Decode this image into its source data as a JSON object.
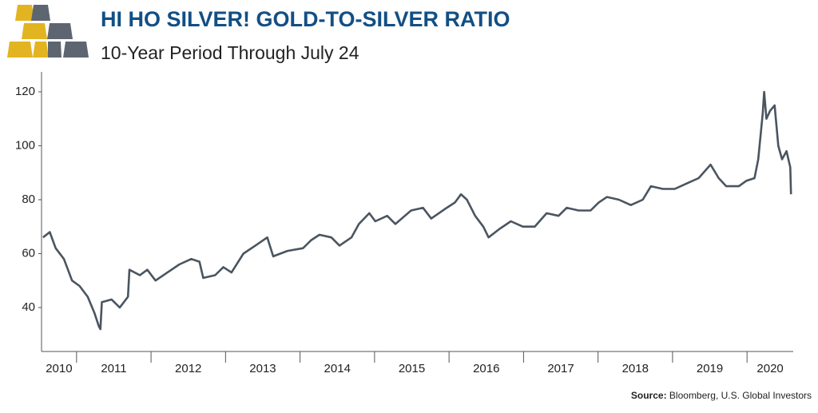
{
  "chart_data": {
    "type": "line",
    "title": "HI HO SILVER! GOLD-TO-SILVER RATIO",
    "subtitle": "10-Year Period Through July 24",
    "source_label": "Source:",
    "source": "Bloomberg, U.S. Global Investors",
    "x": [
      2010.55,
      2010.64,
      2010.72,
      2010.83,
      2010.94,
      2011.04,
      2011.15,
      2011.24,
      2011.3,
      2011.32,
      2011.34,
      2011.47,
      2011.58,
      2011.69,
      2011.71,
      2011.85,
      2011.95,
      2012.06,
      2012.22,
      2012.38,
      2012.54,
      2012.65,
      2012.7,
      2012.86,
      2012.97,
      2013.08,
      2013.24,
      2013.4,
      2013.56,
      2013.64,
      2013.83,
      2014.04,
      2014.15,
      2014.26,
      2014.42,
      2014.53,
      2014.69,
      2014.79,
      2014.93,
      2015.01,
      2015.17,
      2015.28,
      2015.49,
      2015.65,
      2015.76,
      2015.97,
      2016.08,
      2016.16,
      2016.24,
      2016.35,
      2016.46,
      2016.53,
      2016.67,
      2016.83,
      2016.99,
      2017.15,
      2017.31,
      2017.47,
      2017.58,
      2017.74,
      2017.9,
      2018.01,
      2018.12,
      2018.28,
      2018.44,
      2018.6,
      2018.71,
      2018.87,
      2019.03,
      2019.19,
      2019.35,
      2019.51,
      2019.62,
      2019.72,
      2019.89,
      2019.99,
      2020.1,
      2020.15,
      2020.21,
      2020.23,
      2020.26,
      2020.31,
      2020.37,
      2020.42,
      2020.47,
      2020.53,
      2020.58,
      2020.59
    ],
    "series": [
      {
        "name": "Gold-to-Silver Ratio",
        "color": "#4a5560",
        "values": [
          66,
          68,
          62,
          58,
          50,
          48,
          44,
          38,
          33,
          32,
          42,
          43,
          40,
          44,
          54,
          52,
          54,
          50,
          53,
          56,
          58,
          57,
          51,
          52,
          55,
          53,
          60,
          63,
          66,
          59,
          61,
          62,
          65,
          67,
          66,
          63,
          66,
          71,
          75,
          72,
          74,
          71,
          76,
          77,
          73,
          77,
          79,
          82,
          80,
          74,
          70,
          66,
          69,
          72,
          70,
          70,
          75,
          74,
          77,
          76,
          76,
          79,
          81,
          80,
          78,
          80,
          85,
          84,
          84,
          86,
          88,
          93,
          88,
          85,
          85,
          87,
          88,
          95,
          112,
          120,
          110,
          113,
          115,
          100,
          95,
          98,
          92,
          82
        ]
      }
    ],
    "xlim": [
      2010.53,
      2020.62
    ],
    "xticks": [
      {
        "value": 2010,
        "label": "2010"
      },
      {
        "value": 2011,
        "label": "2011"
      },
      {
        "value": 2012,
        "label": "2012"
      },
      {
        "value": 2013,
        "label": "2013"
      },
      {
        "value": 2014,
        "label": "2014"
      },
      {
        "value": 2015,
        "label": "2015"
      },
      {
        "value": 2016,
        "label": "2016"
      },
      {
        "value": 2017,
        "label": "2017"
      },
      {
        "value": 2018,
        "label": "2018"
      },
      {
        "value": 2019,
        "label": "2019"
      },
      {
        "value": 2020,
        "label": "2020"
      }
    ],
    "ylim": [
      23.7,
      127.4
    ],
    "yticks": [
      40,
      60,
      80,
      100,
      120
    ]
  }
}
